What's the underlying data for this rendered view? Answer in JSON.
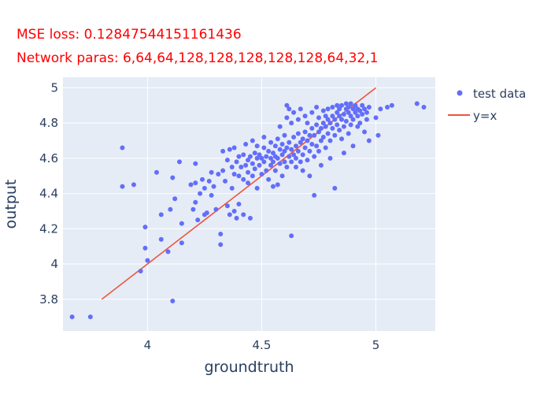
{
  "chart_data": {
    "type": "scatter",
    "title_lines": [
      "MSE loss: 0.12847544151161436",
      "Network paras: 6,64,64,128,128,128,128,128,64,32,1"
    ],
    "xlabel": "groundtruth",
    "ylabel": "output",
    "xlim": [
      3.63,
      5.26
    ],
    "ylim": [
      3.62,
      5.06
    ],
    "xticks": [
      4,
      4.5,
      5
    ],
    "xtick_labels": [
      "4",
      "4.5",
      "5"
    ],
    "yticks": [
      3.8,
      4,
      4.2,
      4.4,
      4.6,
      4.8,
      5
    ],
    "ytick_labels": [
      "3.8",
      "4",
      "4.2",
      "4.4",
      "4.6",
      "4.8",
      "5"
    ],
    "grid": true,
    "legend_position": "top-right",
    "series": [
      {
        "name": "test data",
        "mode": "markers",
        "color": "#636efa",
        "points": [
          [
            3.67,
            3.7
          ],
          [
            3.75,
            3.7
          ],
          [
            3.89,
            4.66
          ],
          [
            3.89,
            4.44
          ],
          [
            3.94,
            4.45
          ],
          [
            3.97,
            3.96
          ],
          [
            3.99,
            4.09
          ],
          [
            3.99,
            4.21
          ],
          [
            4.0,
            4.02
          ],
          [
            4.04,
            4.52
          ],
          [
            4.06,
            4.28
          ],
          [
            4.06,
            4.14
          ],
          [
            4.09,
            4.07
          ],
          [
            4.1,
            4.31
          ],
          [
            4.11,
            4.49
          ],
          [
            4.11,
            3.79
          ],
          [
            4.12,
            4.37
          ],
          [
            4.14,
            4.58
          ],
          [
            4.15,
            4.23
          ],
          [
            4.15,
            4.12
          ],
          [
            4.19,
            4.45
          ],
          [
            4.2,
            4.31
          ],
          [
            4.21,
            4.57
          ],
          [
            4.21,
            4.46
          ],
          [
            4.21,
            4.35
          ],
          [
            4.22,
            4.25
          ],
          [
            4.23,
            4.4
          ],
          [
            4.24,
            4.48
          ],
          [
            4.25,
            4.43
          ],
          [
            4.25,
            4.28
          ],
          [
            4.26,
            4.29
          ],
          [
            4.27,
            4.47
          ],
          [
            4.28,
            4.52
          ],
          [
            4.28,
            4.39
          ],
          [
            4.29,
            4.44
          ],
          [
            4.3,
            4.31
          ],
          [
            4.31,
            4.51
          ],
          [
            4.32,
            4.17
          ],
          [
            4.32,
            4.11
          ],
          [
            4.33,
            4.53
          ],
          [
            4.33,
            4.64
          ],
          [
            4.34,
            4.47
          ],
          [
            4.35,
            4.33
          ],
          [
            4.35,
            4.59
          ],
          [
            4.36,
            4.65
          ],
          [
            4.36,
            4.28
          ],
          [
            4.37,
            4.55
          ],
          [
            4.37,
            4.43
          ],
          [
            4.38,
            4.66
          ],
          [
            4.38,
            4.51
          ],
          [
            4.38,
            4.3
          ],
          [
            4.39,
            4.26
          ],
          [
            4.39,
            4.58
          ],
          [
            4.4,
            4.61
          ],
          [
            4.4,
            4.5
          ],
          [
            4.4,
            4.34
          ],
          [
            4.41,
            4.55
          ],
          [
            4.42,
            4.48
          ],
          [
            4.42,
            4.28
          ],
          [
            4.42,
            4.62
          ],
          [
            4.43,
            4.56
          ],
          [
            4.43,
            4.68
          ],
          [
            4.44,
            4.59
          ],
          [
            4.44,
            4.52
          ],
          [
            4.44,
            4.46
          ],
          [
            4.45,
            4.61
          ],
          [
            4.45,
            4.26
          ],
          [
            4.46,
            4.57
          ],
          [
            4.46,
            4.7
          ],
          [
            4.46,
            4.5
          ],
          [
            4.47,
            4.63
          ],
          [
            4.47,
            4.54
          ],
          [
            4.48,
            4.67
          ],
          [
            4.48,
            4.6
          ],
          [
            4.48,
            4.43
          ],
          [
            4.49,
            4.62
          ],
          [
            4.49,
            4.56
          ],
          [
            4.5,
            4.51
          ],
          [
            4.5,
            4.6
          ],
          [
            4.51,
            4.66
          ],
          [
            4.51,
            4.58
          ],
          [
            4.51,
            4.72
          ],
          [
            4.52,
            4.53
          ],
          [
            4.52,
            4.61
          ],
          [
            4.53,
            4.64
          ],
          [
            4.53,
            4.48
          ],
          [
            4.54,
            4.56
          ],
          [
            4.54,
            4.6
          ],
          [
            4.54,
            4.69
          ],
          [
            4.55,
            4.63
          ],
          [
            4.55,
            4.58
          ],
          [
            4.55,
            4.44
          ],
          [
            4.56,
            4.61
          ],
          [
            4.56,
            4.67
          ],
          [
            4.56,
            4.53
          ],
          [
            4.57,
            4.6
          ],
          [
            4.57,
            4.71
          ],
          [
            4.57,
            4.45
          ],
          [
            4.58,
            4.65
          ],
          [
            4.58,
            4.57
          ],
          [
            4.58,
            4.78
          ],
          [
            4.59,
            4.62
          ],
          [
            4.59,
            4.68
          ],
          [
            4.59,
            4.5
          ],
          [
            4.6,
            4.64
          ],
          [
            4.6,
            4.58
          ],
          [
            4.6,
            4.73
          ],
          [
            4.61,
            4.66
          ],
          [
            4.61,
            4.55
          ],
          [
            4.61,
            4.9
          ],
          [
            4.61,
            4.83
          ],
          [
            4.62,
            4.69
          ],
          [
            4.62,
            4.61
          ],
          [
            4.62,
            4.88
          ],
          [
            4.63,
            4.65
          ],
          [
            4.63,
            4.58
          ],
          [
            4.63,
            4.16
          ],
          [
            4.63,
            4.8
          ],
          [
            4.64,
            4.72
          ],
          [
            4.64,
            4.62
          ],
          [
            4.64,
            4.86
          ],
          [
            4.65,
            4.67
          ],
          [
            4.65,
            4.6
          ],
          [
            4.65,
            4.55
          ],
          [
            4.66,
            4.74
          ],
          [
            4.66,
            4.64
          ],
          [
            4.66,
            4.82
          ],
          [
            4.67,
            4.69
          ],
          [
            4.67,
            4.58
          ],
          [
            4.67,
            4.88
          ],
          [
            4.68,
            4.71
          ],
          [
            4.68,
            4.62
          ],
          [
            4.68,
            4.53
          ],
          [
            4.69,
            4.75
          ],
          [
            4.69,
            4.66
          ],
          [
            4.69,
            4.84
          ],
          [
            4.7,
            4.7
          ],
          [
            4.7,
            4.59
          ],
          [
            4.7,
            4.8
          ],
          [
            4.71,
            4.73
          ],
          [
            4.71,
            4.64
          ],
          [
            4.71,
            4.5
          ],
          [
            4.72,
            4.77
          ],
          [
            4.72,
            4.68
          ],
          [
            4.72,
            4.86
          ],
          [
            4.73,
            4.73
          ],
          [
            4.73,
            4.61
          ],
          [
            4.73,
            4.39
          ],
          [
            4.74,
            4.79
          ],
          [
            4.74,
            4.67
          ],
          [
            4.74,
            4.89
          ],
          [
            4.75,
            4.75
          ],
          [
            4.75,
            4.64
          ],
          [
            4.75,
            4.83
          ],
          [
            4.76,
            4.77
          ],
          [
            4.76,
            4.7
          ],
          [
            4.76,
            4.56
          ],
          [
            4.77,
            4.8
          ],
          [
            4.77,
            4.72
          ],
          [
            4.77,
            4.87
          ],
          [
            4.78,
            4.78
          ],
          [
            4.78,
            4.66
          ],
          [
            4.78,
            4.84
          ],
          [
            4.79,
            4.82
          ],
          [
            4.79,
            4.74
          ],
          [
            4.79,
            4.88
          ],
          [
            4.8,
            4.8
          ],
          [
            4.8,
            4.7
          ],
          [
            4.8,
            4.6
          ],
          [
            4.81,
            4.84
          ],
          [
            4.81,
            4.77
          ],
          [
            4.81,
            4.89
          ],
          [
            4.82,
            4.82
          ],
          [
            4.82,
            4.73
          ],
          [
            4.82,
            4.43
          ],
          [
            4.83,
            4.86
          ],
          [
            4.83,
            4.79
          ],
          [
            4.83,
            4.9
          ],
          [
            4.84,
            4.84
          ],
          [
            4.84,
            4.76
          ],
          [
            4.84,
            4.88
          ],
          [
            4.85,
            4.82
          ],
          [
            4.85,
            4.71
          ],
          [
            4.85,
            4.9
          ],
          [
            4.86,
            4.85
          ],
          [
            4.86,
            4.78
          ],
          [
            4.86,
            4.63
          ],
          [
            4.87,
            4.88
          ],
          [
            4.87,
            4.81
          ],
          [
            4.87,
            4.91
          ],
          [
            4.88,
            4.86
          ],
          [
            4.88,
            4.74
          ],
          [
            4.88,
            4.89
          ],
          [
            4.89,
            4.84
          ],
          [
            4.89,
            4.79
          ],
          [
            4.89,
            4.91
          ],
          [
            4.9,
            4.88
          ],
          [
            4.9,
            4.82
          ],
          [
            4.9,
            4.67
          ],
          [
            4.91,
            4.86
          ],
          [
            4.91,
            4.9
          ],
          [
            4.92,
            4.84
          ],
          [
            4.92,
            4.78
          ],
          [
            4.92,
            4.88
          ],
          [
            4.93,
            4.87
          ],
          [
            4.93,
            4.8
          ],
          [
            4.94,
            4.9
          ],
          [
            4.94,
            4.85
          ],
          [
            4.95,
            4.88
          ],
          [
            4.95,
            4.75
          ],
          [
            4.96,
            4.86
          ],
          [
            4.96,
            4.82
          ],
          [
            4.97,
            4.89
          ],
          [
            4.97,
            4.7
          ],
          [
            5.0,
            4.83
          ],
          [
            5.01,
            4.73
          ],
          [
            5.02,
            4.88
          ],
          [
            5.05,
            4.89
          ],
          [
            5.07,
            4.9
          ],
          [
            5.18,
            4.91
          ],
          [
            5.21,
            4.89
          ]
        ]
      },
      {
        "name": "y=x",
        "mode": "lines",
        "color": "#ef553b",
        "x": [
          3.8,
          5.0
        ],
        "y": [
          3.8,
          5.0
        ]
      }
    ]
  }
}
